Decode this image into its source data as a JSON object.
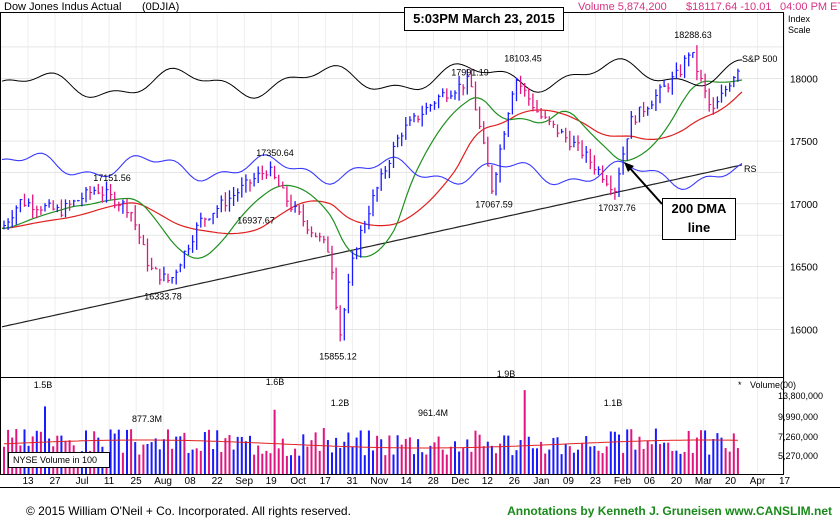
{
  "header": {
    "name": "Dow Jones Indus Actual",
    "symbol": "(0DJIA)",
    "volume": "Volume 5,874,200",
    "quote": "$18117.64 -10.01",
    "time": "04:00 PM ET",
    "timestamp_box": "5:03PM March 23, 2015"
  },
  "callout": {
    "line1": "200 DMA",
    "line2": "line"
  },
  "footer": {
    "left": "© 2015  William O'Neil + Co. Incorporated. All rights reserved.",
    "right": "Annotations by Kenneth J. Gruneisen www.CANSLIM.net"
  },
  "colors": {
    "up": "#1a1aff",
    "down": "#e0157f",
    "sp500": "#000000",
    "rs": "#3a3aff",
    "ma50": "#1f8f1f",
    "ma21": "#e02020",
    "ma200": "#222222",
    "vol_ma": "#e02020",
    "header_pink": "#d63384",
    "footer_green": "#1a8a1a"
  },
  "chart_data": [
    {
      "type": "candlestick",
      "title": "Dow Jones Indus Actual (0DJIA)",
      "y_axis_label": "Index Scale",
      "ylim": [
        15620,
        18520
      ],
      "y_ticks": [
        16000,
        16500,
        17000,
        17500,
        18000
      ],
      "x_ticks": [
        "13",
        "27",
        "Jul",
        "11",
        "25",
        "Aug",
        "08",
        "22",
        "Sep",
        "19",
        "Oct",
        "17",
        "31",
        "Nov",
        "14",
        "28",
        "Dec",
        "12",
        "26",
        "Jan",
        "09",
        "23",
        "Feb",
        "06",
        "20",
        "Mar",
        "20",
        "Apr",
        "17"
      ],
      "series_labels": [
        "S&P 500",
        "RS"
      ],
      "annotations": [
        {
          "text": "17151.56",
          "value": 17151.56
        },
        {
          "text": "16333.78",
          "value": 16333.78
        },
        {
          "text": "17350.64",
          "value": 17350.64
        },
        {
          "text": "16937.67",
          "value": 16937.67
        },
        {
          "text": "15855.12",
          "value": 15855.12
        },
        {
          "text": "17991.19",
          "value": 17991.19
        },
        {
          "text": "18103.45",
          "value": 18103.45
        },
        {
          "text": "17067.59",
          "value": 17067.59
        },
        {
          "text": "17037.76",
          "value": 17037.76
        },
        {
          "text": "18288.63",
          "value": 18288.63
        }
      ],
      "legend": "none",
      "grid": true
    },
    {
      "type": "bar",
      "title": "Volume(00)",
      "legend": "NYSE Volume in 100",
      "y_ticks": [
        "13,800,000",
        "9,990,000",
        "7,260,000",
        "5,270,000"
      ],
      "annotations": [
        "1.5B",
        "877.3M",
        "1.6B",
        "1.2B",
        "961.4M",
        "1.9B",
        "1.1B"
      ]
    }
  ]
}
